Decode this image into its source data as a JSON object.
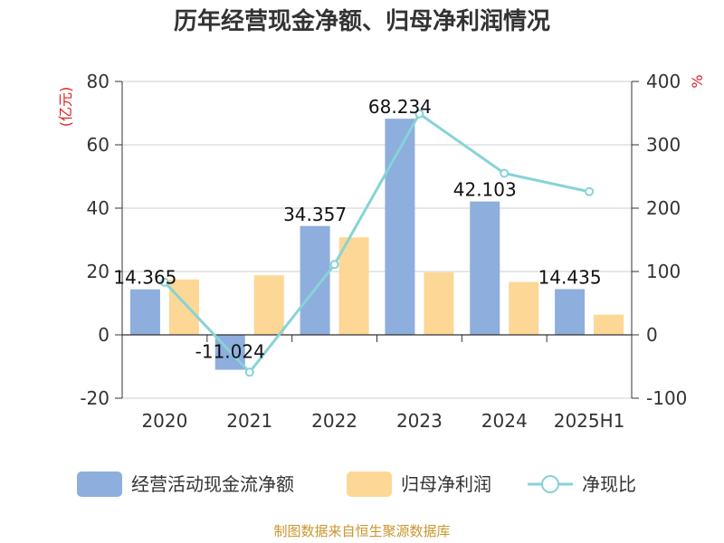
{
  "chart_data": {
    "type": "bar",
    "title": "历年经营现金净额、归母净利润情况",
    "categories": [
      "2020",
      "2021",
      "2022",
      "2023",
      "2024",
      "2025H1"
    ],
    "left_axis": {
      "unit": "(亿元)",
      "ylim": [
        -20,
        80
      ],
      "ticks": [
        -20,
        0,
        20,
        40,
        60,
        80
      ]
    },
    "right_axis": {
      "unit": "%",
      "ylim": [
        -100,
        400
      ],
      "ticks": [
        -100,
        0,
        100,
        200,
        300,
        400
      ]
    },
    "series": [
      {
        "name": "经营活动现金流净额",
        "type": "bar",
        "axis": "left",
        "color": "#8eaedd",
        "values": [
          14.365,
          -11.024,
          34.357,
          68.234,
          42.103,
          14.435
        ],
        "labels": [
          "14.365",
          "-11.024",
          "34.357",
          "68.234",
          "42.103",
          "14.435"
        ]
      },
      {
        "name": "归母净利润",
        "type": "bar",
        "axis": "left",
        "color": "#fdd796",
        "values": [
          17.5,
          18.8,
          30.8,
          19.7,
          16.7,
          6.4
        ]
      },
      {
        "name": "净现比",
        "type": "line",
        "axis": "right",
        "color": "#86d3d8",
        "values": [
          83,
          -59,
          111,
          349,
          255,
          226
        ]
      }
    ],
    "legend_position": "bottom",
    "grid": true
  },
  "footer": {
    "source": "制图数据来自恒生聚源数据库"
  }
}
